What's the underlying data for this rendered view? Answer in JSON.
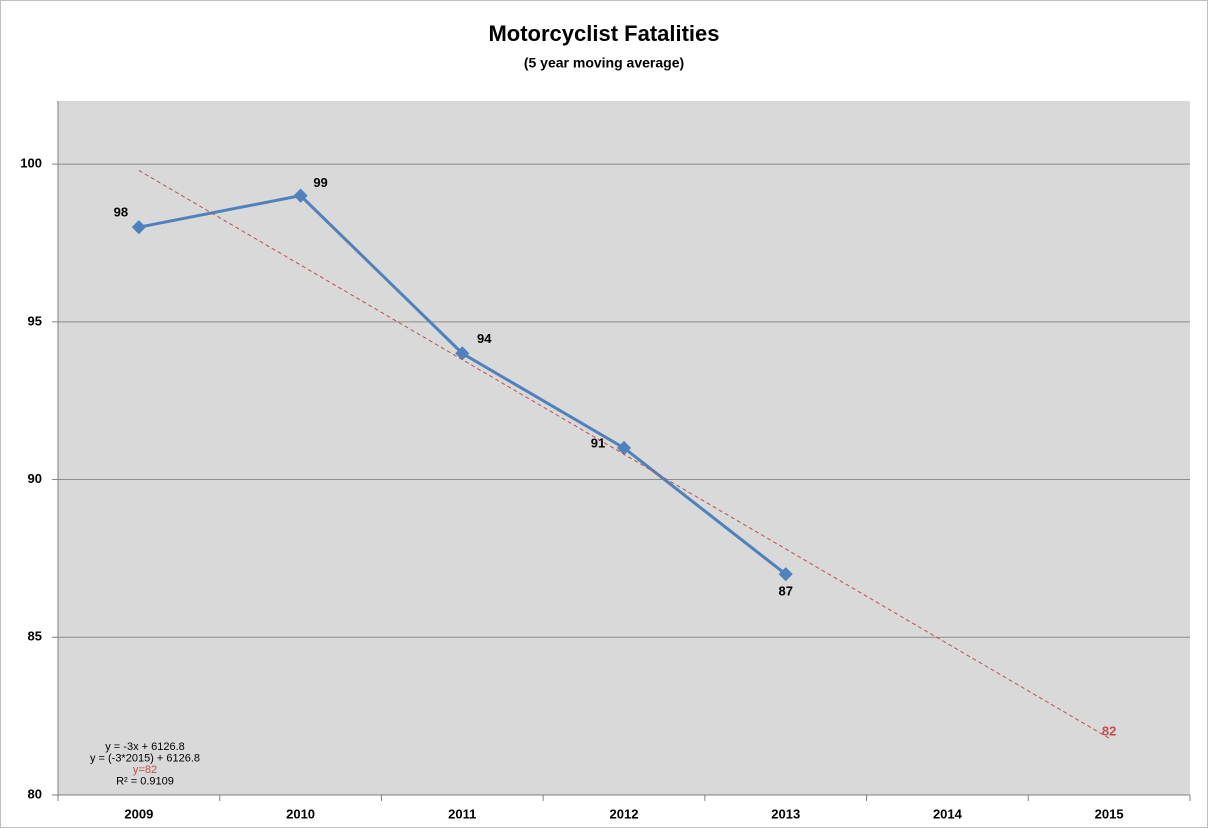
{
  "chart_data": {
    "type": "line",
    "title": "Motorcyclist Fatalities",
    "subtitle": "(5 year moving average)",
    "categories": [
      "2009",
      "2010",
      "2011",
      "2012",
      "2013",
      "2014",
      "2015"
    ],
    "series": [
      {
        "color": "#4f81bd",
        "values": [
          98,
          99,
          94,
          91,
          87,
          null,
          null
        ]
      },
      {
        "color": "#c0504d",
        "dashed": true,
        "values": [
          99.8,
          96.8,
          93.8,
          90.8,
          87.8,
          84.8,
          81.8
        ],
        "value_labels": [
          null,
          null,
          null,
          null,
          null,
          null,
          "82"
        ]
      }
    ],
    "annotations": [
      "y = -3x + 6126.8",
      "y = (-3*2015) + 6126.8",
      "y=82",
      "R² = 0.9109"
    ],
    "ylim": [
      80,
      102
    ],
    "yticks": [
      80,
      85,
      90,
      95,
      100
    ],
    "grid": true,
    "plot_background": "#d9d9d9"
  }
}
